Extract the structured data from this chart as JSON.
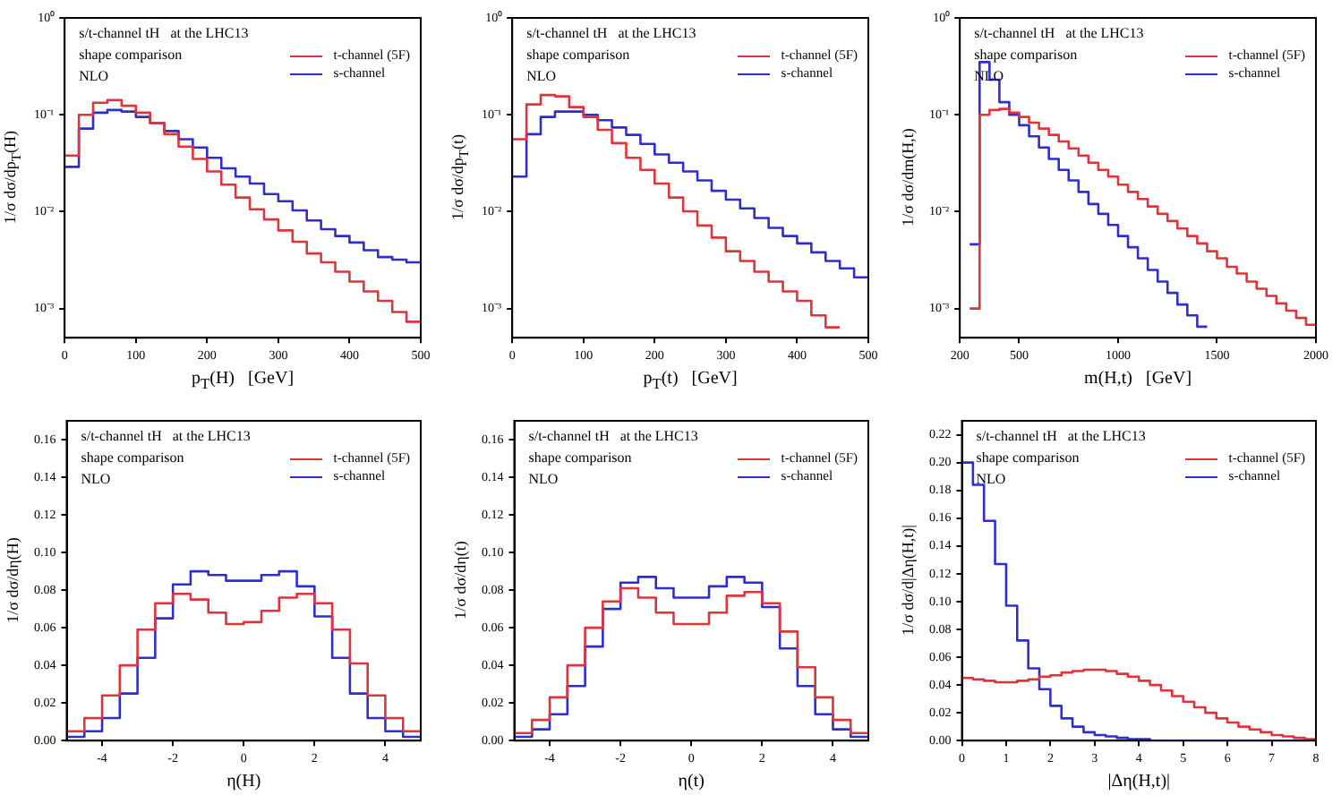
{
  "chart_data": [
    {
      "type": "histogram",
      "xlabel": "p$_{T}$(H)   [GeV]",
      "ylabel": "1/σ dσ/dp$_{T}$(H)",
      "annotations": [
        "s/t-channel tH   at the LHC13",
        "shape comparison",
        "NLO"
      ],
      "legend": "top right",
      "log": "y",
      "xlim": [
        0,
        500
      ],
      "xticks": [
        0,
        100,
        200,
        300,
        400,
        500
      ],
      "ylim": [
        0.0005,
        1
      ],
      "yticks": [
        {
          "value": 0.001,
          "label": "10⁻³"
        },
        {
          "value": 0.01,
          "label": "10⁻²"
        },
        {
          "value": 0.1,
          "label": "10⁻¹"
        },
        {
          "value": 1,
          "label": "10⁰"
        }
      ],
      "bins": [
        0,
        20,
        40,
        60,
        80,
        100,
        120,
        140,
        160,
        180,
        200,
        220,
        240,
        260,
        280,
        300,
        320,
        340,
        360,
        380,
        400,
        420,
        440,
        460,
        480,
        500
      ],
      "series": [
        {
          "name": "t-channel (5F)",
          "color": "#e0343a",
          "values": [
            0.038,
            0.1,
            0.133,
            0.142,
            0.124,
            0.105,
            0.082,
            0.063,
            0.047,
            0.035,
            0.026,
            0.019,
            0.014,
            0.0106,
            0.0083,
            0.0064,
            0.0049,
            0.0037,
            0.003,
            0.0024,
            0.0019,
            0.0015,
            0.0012,
            0.00092,
            0.00073
          ]
        },
        {
          "name": "s-channel",
          "color": "#2e2ed0",
          "values": [
            0.029,
            0.072,
            0.105,
            0.112,
            0.108,
            0.095,
            0.082,
            0.068,
            0.056,
            0.046,
            0.036,
            0.028,
            0.023,
            0.0195,
            0.0152,
            0.0128,
            0.0103,
            0.0081,
            0.0066,
            0.0056,
            0.0048,
            0.004,
            0.0034,
            0.0032,
            0.003
          ]
        }
      ]
    },
    {
      "type": "histogram",
      "xlabel": "p$_{T}$(t)   [GeV]",
      "ylabel": "1/σ dσ/dp$_{T}$(t)",
      "annotations": [
        "s/t-channel tH   at the LHC13",
        "shape comparison",
        "NLO"
      ],
      "legend": "top right",
      "log": "y",
      "xlim": [
        0,
        500
      ],
      "xticks": [
        0,
        100,
        200,
        300,
        400,
        500
      ],
      "ylim": [
        0.0005,
        1
      ],
      "yticks": [
        {
          "value": 0.001,
          "label": "10⁻³"
        },
        {
          "value": 0.01,
          "label": "10⁻²"
        },
        {
          "value": 0.1,
          "label": "10⁻¹"
        },
        {
          "value": 1,
          "label": "10⁰"
        }
      ],
      "bins": [
        0,
        20,
        40,
        60,
        80,
        100,
        120,
        140,
        160,
        180,
        200,
        220,
        240,
        260,
        280,
        300,
        320,
        340,
        360,
        380,
        400,
        420,
        440,
        460,
        480,
        500
      ],
      "series": [
        {
          "name": "t-channel (5F)",
          "color": "#e0343a",
          "bins": [
            0,
            20,
            40,
            60,
            80,
            100,
            120,
            140,
            160,
            180,
            200,
            220,
            240,
            260,
            280,
            300,
            320,
            340,
            360,
            380,
            400,
            420,
            440,
            460
          ],
          "values": [
            0.056,
            0.128,
            0.16,
            0.155,
            0.12,
            0.095,
            0.07,
            0.051,
            0.036,
            0.027,
            0.0195,
            0.014,
            0.0101,
            0.0072,
            0.0054,
            0.0039,
            0.0031,
            0.0024,
            0.0019,
            0.0015,
            0.0012,
            0.00085,
            0.00064
          ]
        },
        {
          "name": "s-channel",
          "color": "#2e2ed0",
          "values": [
            0.023,
            0.063,
            0.095,
            0.108,
            0.108,
            0.1,
            0.088,
            0.074,
            0.062,
            0.05,
            0.039,
            0.032,
            0.026,
            0.021,
            0.0164,
            0.0133,
            0.0108,
            0.0086,
            0.0068,
            0.0056,
            0.0047,
            0.0038,
            0.0031,
            0.0026,
            0.0021
          ]
        }
      ]
    },
    {
      "type": "histogram",
      "xlabel": "m(H,t)   [GeV]",
      "ylabel": "1/σ dσ/dm(H,t)",
      "annotations": [
        "s/t-channel tH   at the LHC13",
        "shape comparison",
        "NLO"
      ],
      "legend": "top right",
      "log": "y",
      "xlim": [
        200,
        2000
      ],
      "xticks": [
        200,
        500,
        1000,
        1500,
        2000
      ],
      "ylim": [
        0.0005,
        1
      ],
      "yticks": [
        {
          "value": 0.001,
          "label": "10⁻³"
        },
        {
          "value": 0.01,
          "label": "10⁻²"
        },
        {
          "value": 0.1,
          "label": "10⁻¹"
        },
        {
          "value": 1,
          "label": "10⁰"
        }
      ],
      "bins": [
        250,
        300,
        350,
        400,
        450,
        500,
        550,
        600,
        650,
        700,
        750,
        800,
        850,
        900,
        950,
        1000,
        1050,
        1100,
        1150,
        1200,
        1250,
        1300,
        1350,
        1400,
        1450,
        1500,
        1550,
        1600,
        1650,
        1700,
        1750,
        1800,
        1850,
        1900,
        1950,
        2000
      ],
      "series": [
        {
          "name": "t-channel (5F)",
          "color": "#e0343a",
          "values": [
            0.001,
            0.1,
            0.112,
            0.115,
            0.105,
            0.095,
            0.083,
            0.072,
            0.062,
            0.053,
            0.045,
            0.038,
            0.032,
            0.027,
            0.023,
            0.019,
            0.016,
            0.0135,
            0.0113,
            0.0095,
            0.008,
            0.0067,
            0.0056,
            0.0047,
            0.0039,
            0.0033,
            0.0027,
            0.0023,
            0.0019,
            0.0016,
            0.00135,
            0.00113,
            0.00095,
            0.0008,
            0.00068
          ]
        },
        {
          "name": "s-channel",
          "color": "#2e2ed0",
          "bins": [
            250,
            300,
            350,
            400,
            450,
            500,
            550,
            600,
            650,
            700,
            750,
            800,
            850,
            900,
            950,
            1000,
            1050,
            1100,
            1150,
            1200,
            1250,
            1300,
            1350,
            1400,
            1450
          ],
          "values": [
            0.0046,
            0.35,
            0.23,
            0.135,
            0.1,
            0.078,
            0.06,
            0.046,
            0.035,
            0.027,
            0.021,
            0.016,
            0.012,
            0.0095,
            0.0073,
            0.0056,
            0.0043,
            0.0033,
            0.0025,
            0.0019,
            0.00145,
            0.0011,
            0.00085,
            0.00065
          ]
        }
      ]
    },
    {
      "type": "histogram",
      "xlabel": "η(H)",
      "ylabel": "1/σ dσ/dη(H)",
      "annotations": [
        "s/t-channel tH   at the LHC13",
        "shape comparison",
        "NLO"
      ],
      "legend": "top right",
      "xlim": [
        -5,
        5
      ],
      "xticks": [
        -4,
        -2,
        0,
        2,
        4
      ],
      "ylim": [
        0,
        0.17
      ],
      "yticks": [
        {
          "value": 0,
          "label": "0.00"
        },
        {
          "value": 0.02,
          "label": "0.02"
        },
        {
          "value": 0.04,
          "label": "0.04"
        },
        {
          "value": 0.06,
          "label": "0.06"
        },
        {
          "value": 0.08,
          "label": "0.08"
        },
        {
          "value": 0.1,
          "label": "0.10"
        },
        {
          "value": 0.12,
          "label": "0.12"
        },
        {
          "value": 0.14,
          "label": "0.14"
        },
        {
          "value": 0.16,
          "label": "0.16"
        }
      ],
      "bins": [
        -5,
        -4.5,
        -4,
        -3.5,
        -3,
        -2.5,
        -2,
        -1.5,
        -1,
        -0.5,
        0,
        0.5,
        1,
        1.5,
        2,
        2.5,
        3,
        3.5,
        4,
        4.5,
        5
      ],
      "series": [
        {
          "name": "t-channel (5F)",
          "color": "#e0343a",
          "values": [
            0.005,
            0.012,
            0.024,
            0.04,
            0.059,
            0.073,
            0.078,
            0.075,
            0.068,
            0.062,
            0.063,
            0.069,
            0.076,
            0.078,
            0.073,
            0.059,
            0.041,
            0.024,
            0.012,
            0.005
          ]
        },
        {
          "name": "s-channel",
          "color": "#2e2ed0",
          "values": [
            0.002,
            0.005,
            0.012,
            0.025,
            0.044,
            0.065,
            0.083,
            0.09,
            0.088,
            0.085,
            0.085,
            0.088,
            0.09,
            0.082,
            0.066,
            0.044,
            0.025,
            0.012,
            0.005,
            0.002
          ]
        }
      ]
    },
    {
      "type": "histogram",
      "xlabel": "η(t)",
      "ylabel": "1/σ dσ/dη(t)",
      "annotations": [
        "s/t-channel tH   at the LHC13",
        "shape comparison",
        "NLO"
      ],
      "legend": "top right",
      "xlim": [
        -5,
        5
      ],
      "xticks": [
        -4,
        -2,
        0,
        2,
        4
      ],
      "ylim": [
        0,
        0.17
      ],
      "yticks": [
        {
          "value": 0,
          "label": "0.00"
        },
        {
          "value": 0.02,
          "label": "0.02"
        },
        {
          "value": 0.04,
          "label": "0.04"
        },
        {
          "value": 0.06,
          "label": "0.06"
        },
        {
          "value": 0.08,
          "label": "0.08"
        },
        {
          "value": 0.1,
          "label": "0.10"
        },
        {
          "value": 0.12,
          "label": "0.12"
        },
        {
          "value": 0.14,
          "label": "0.14"
        },
        {
          "value": 0.16,
          "label": "0.16"
        }
      ],
      "bins": [
        -5,
        -4.5,
        -4,
        -3.5,
        -3,
        -2.5,
        -2,
        -1.5,
        -1,
        -0.5,
        0,
        0.5,
        1,
        1.5,
        2,
        2.5,
        3,
        3.5,
        4,
        4.5,
        5
      ],
      "series": [
        {
          "name": "t-channel (5F)",
          "color": "#e0343a",
          "values": [
            0.004,
            0.011,
            0.023,
            0.04,
            0.06,
            0.074,
            0.081,
            0.076,
            0.068,
            0.062,
            0.062,
            0.068,
            0.077,
            0.079,
            0.073,
            0.058,
            0.039,
            0.023,
            0.011,
            0.004
          ]
        },
        {
          "name": "s-channel",
          "color": "#2e2ed0",
          "values": [
            0.002,
            0.006,
            0.014,
            0.029,
            0.05,
            0.07,
            0.084,
            0.087,
            0.081,
            0.076,
            0.076,
            0.082,
            0.087,
            0.084,
            0.071,
            0.049,
            0.029,
            0.014,
            0.006,
            0.002
          ]
        }
      ]
    },
    {
      "type": "histogram",
      "xlabel": "|Δη(H,t)|",
      "ylabel": "1/σ dσ/d|Δη(H,t)|",
      "annotations": [
        "s/t-channel tH   at the LHC13",
        "shape comparison",
        "NLO"
      ],
      "legend": "top right",
      "xlim": [
        0,
        8
      ],
      "xticks": [
        0,
        1,
        2,
        3,
        4,
        5,
        6,
        7,
        8
      ],
      "ylim": [
        0,
        0.23
      ],
      "yticks": [
        {
          "value": 0,
          "label": "0.00"
        },
        {
          "value": 0.02,
          "label": "0.02"
        },
        {
          "value": 0.04,
          "label": "0.04"
        },
        {
          "value": 0.06,
          "label": "0.06"
        },
        {
          "value": 0.08,
          "label": "0.08"
        },
        {
          "value": 0.1,
          "label": "0.10"
        },
        {
          "value": 0.12,
          "label": "0.12"
        },
        {
          "value": 0.14,
          "label": "0.14"
        },
        {
          "value": 0.16,
          "label": "0.16"
        },
        {
          "value": 0.18,
          "label": "0.18"
        },
        {
          "value": 0.2,
          "label": "0.20"
        },
        {
          "value": 0.22,
          "label": "0.22"
        }
      ],
      "bins": [
        0,
        0.25,
        0.5,
        0.75,
        1,
        1.25,
        1.5,
        1.75,
        2,
        2.25,
        2.5,
        2.75,
        3,
        3.25,
        3.5,
        3.75,
        4,
        4.25,
        4.5,
        4.75,
        5,
        5.25,
        5.5,
        5.75,
        6,
        6.25,
        6.5,
        6.75,
        7,
        7.25,
        7.5,
        7.75,
        8
      ],
      "series": [
        {
          "name": "t-channel (5F)",
          "color": "#e0343a",
          "values": [
            0.045,
            0.044,
            0.043,
            0.042,
            0.042,
            0.043,
            0.044,
            0.046,
            0.047,
            0.049,
            0.05,
            0.051,
            0.051,
            0.05,
            0.048,
            0.046,
            0.043,
            0.04,
            0.036,
            0.032,
            0.028,
            0.024,
            0.02,
            0.016,
            0.013,
            0.01,
            0.008,
            0.006,
            0.004,
            0.003,
            0.002,
            0.001
          ]
        },
        {
          "name": "s-channel",
          "color": "#2e2ed0",
          "values": [
            0.2,
            0.184,
            0.158,
            0.127,
            0.097,
            0.072,
            0.052,
            0.037,
            0.025,
            0.016,
            0.01,
            0.006,
            0.004,
            0.003,
            0.002,
            0.001,
            0.001,
            0,
            0,
            0,
            0,
            0,
            0,
            0,
            0,
            0,
            0,
            0,
            0,
            0,
            0,
            0
          ]
        }
      ]
    }
  ]
}
